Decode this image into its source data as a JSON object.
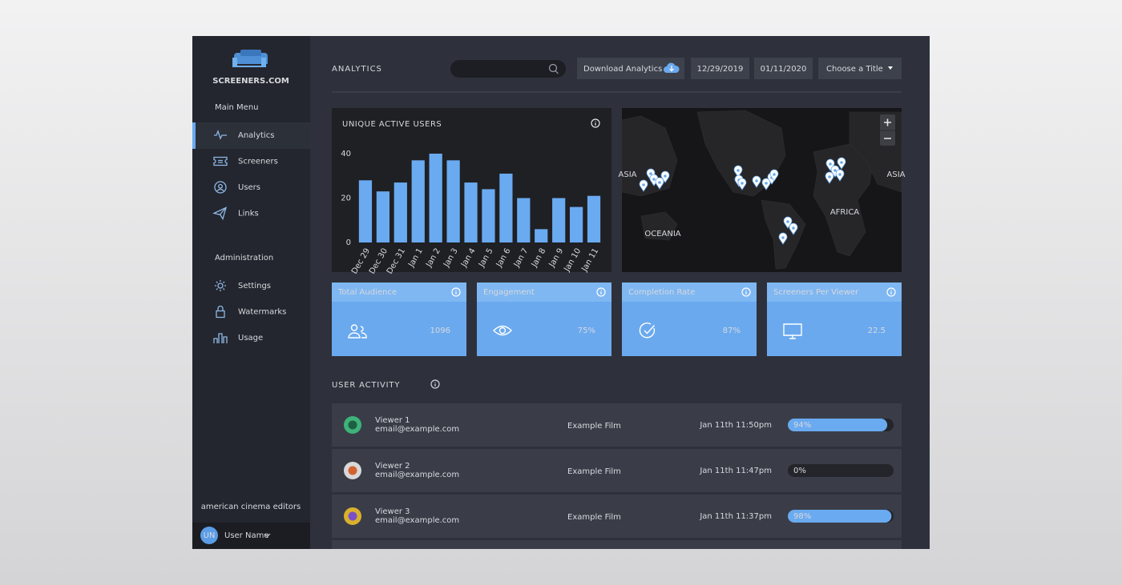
{
  "sidebar": {
    "brand": "SCREENERS.COM",
    "sections": [
      {
        "heading": "Main Menu",
        "items": [
          "Analytics",
          "Screeners",
          "Users",
          "Links"
        ]
      },
      {
        "heading": "Administration",
        "items": [
          "Settings",
          "Watermarks",
          "Usage"
        ]
      }
    ],
    "organization": "american cinema editors",
    "user": {
      "initials": "UN",
      "name": "User Name"
    }
  },
  "header": {
    "title": "ANALYTICS",
    "download": "Download Analytics",
    "start_date": "12/29/2019",
    "end_date": "01/11/2020",
    "title_select": "Choose a Title"
  },
  "chart_data": {
    "type": "bar",
    "title": "UNIQUE ACTIVE USERS",
    "categories": [
      "Dec 29",
      "Dec 30",
      "Dec 31",
      "Jan 1",
      "Jan 2",
      "Jan 3",
      "Jan 4",
      "Jan 5",
      "Jan 6",
      "Jan 7",
      "Jan 8",
      "Jan 9",
      "Jan 10",
      "Jan 11"
    ],
    "values": [
      28,
      23,
      27,
      37,
      40,
      37,
      27,
      24,
      31,
      20,
      6,
      20,
      16,
      21
    ],
    "color": "#6aaaf0",
    "ylim": [
      0,
      40
    ],
    "yticks": [
      0,
      20,
      40
    ],
    "grid": false
  },
  "map": {
    "labels": [
      "ASIA",
      "AFRICA",
      "OCEANIA",
      "ASIA"
    ]
  },
  "stats": [
    {
      "label": "Total Audience",
      "value": "1096"
    },
    {
      "label": "Engagement",
      "value": "75%"
    },
    {
      "label": "Completion Rate",
      "value": "87%"
    },
    {
      "label": "Screeners Per Viewer",
      "value": "22.5"
    }
  ],
  "activity": {
    "title": "USER ACTIVITY",
    "rows": [
      {
        "name": "Viewer 1",
        "email": "email@example.com",
        "film": "Example Film",
        "time": "Jan 11th 11:50pm",
        "progress": 94,
        "progress_label": "94%"
      },
      {
        "name": "Viewer 2",
        "email": "email@example.com",
        "film": "Example Film",
        "time": "Jan 11th 11:47pm",
        "progress": 0,
        "progress_label": "0%"
      },
      {
        "name": "Viewer 3",
        "email": "email@example.com",
        "film": "Example Film",
        "time": "Jan 11th 11:37pm",
        "progress": 98,
        "progress_label": "98%"
      }
    ]
  }
}
